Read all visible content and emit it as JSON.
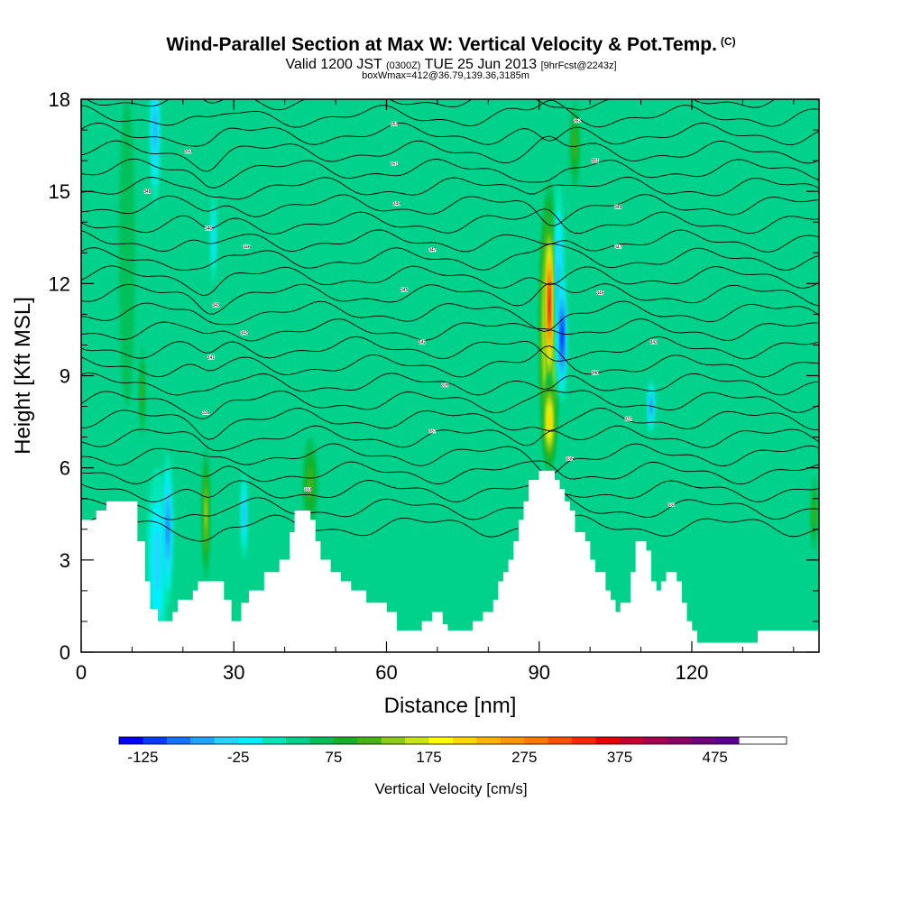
{
  "header": {
    "title": "Wind-Parallel Section at Max W: Vertical Velocity & Pot.Temp.",
    "title_mark": "(C)",
    "valid_prefix": "Valid 1200 JST",
    "valid_utc": "(0300Z)",
    "valid_date": "TUE 25 Jun 2013",
    "forecast": "[9hrFcst@2243z]",
    "box_info": "boxWmax=412@36.79,139.36,3185m"
  },
  "chart_data": {
    "type": "heatmap",
    "xlabel": "Distance [nm]",
    "ylabel": "Height [Kft MSL]",
    "xlim": [
      0,
      145
    ],
    "ylim": [
      0,
      18
    ],
    "x_ticks": [
      0,
      30,
      60,
      90,
      120
    ],
    "y_ticks": [
      0,
      3,
      6,
      9,
      12,
      15,
      18
    ],
    "background_velocity": 40,
    "colorbar": {
      "title": "Vertical Velocity [cm/s]",
      "min": -150,
      "max": 550,
      "step": 25,
      "tick_values": [
        -125,
        -25,
        75,
        175,
        275,
        375,
        475
      ],
      "tick_labels": [
        "-125",
        "-25",
        "75",
        "175",
        "275",
        "375",
        "475"
      ],
      "colors": [
        "#0000ff",
        "#0a3cff",
        "#1473ff",
        "#1ea5ff",
        "#26d4ff",
        "#00f0ff",
        "#00e6b4",
        "#00d28c",
        "#00c05a",
        "#18b028",
        "#46b414",
        "#8ccc14",
        "#c8e614",
        "#ffff00",
        "#ffd800",
        "#ffb400",
        "#ff9600",
        "#ff7800",
        "#ff5000",
        "#ff2800",
        "#e60000",
        "#c80032",
        "#aa0050",
        "#8c0064",
        "#70007f",
        "#5a0090"
      ]
    },
    "terrain": [
      [
        0,
        4.3
      ],
      [
        3,
        4.3
      ],
      [
        3,
        4.6
      ],
      [
        5,
        4.6
      ],
      [
        5,
        4.9
      ],
      [
        11,
        4.9
      ],
      [
        11,
        3.6
      ],
      [
        12.5,
        3.6
      ],
      [
        12.5,
        2.3
      ],
      [
        13.5,
        2.3
      ],
      [
        13.5,
        1.4
      ],
      [
        15,
        1.4
      ],
      [
        15,
        1.0
      ],
      [
        18,
        1.0
      ],
      [
        18,
        1.3
      ],
      [
        19,
        1.3
      ],
      [
        19,
        1.7
      ],
      [
        22,
        1.7
      ],
      [
        22,
        2.0
      ],
      [
        23,
        2.0
      ],
      [
        23,
        2.3
      ],
      [
        28,
        2.3
      ],
      [
        28,
        1.7
      ],
      [
        29.5,
        1.7
      ],
      [
        29.5,
        1.0
      ],
      [
        31.5,
        1.0
      ],
      [
        31.5,
        1.6
      ],
      [
        33,
        1.6
      ],
      [
        33,
        2.0
      ],
      [
        36,
        2.0
      ],
      [
        36,
        2.6
      ],
      [
        39,
        2.6
      ],
      [
        39,
        3.0
      ],
      [
        41,
        3.0
      ],
      [
        41,
        3.9
      ],
      [
        42,
        3.9
      ],
      [
        42,
        4.6
      ],
      [
        45,
        4.6
      ],
      [
        45,
        4.3
      ],
      [
        46,
        4.3
      ],
      [
        46,
        3.6
      ],
      [
        47,
        3.6
      ],
      [
        47,
        3.0
      ],
      [
        49,
        3.0
      ],
      [
        49,
        2.6
      ],
      [
        51,
        2.6
      ],
      [
        51,
        2.3
      ],
      [
        53,
        2.3
      ],
      [
        53,
        2.0
      ],
      [
        56,
        2.0
      ],
      [
        56,
        1.6
      ],
      [
        60,
        1.6
      ],
      [
        60,
        1.3
      ],
      [
        62,
        1.3
      ],
      [
        62,
        0.7
      ],
      [
        67,
        0.7
      ],
      [
        67,
        1.0
      ],
      [
        69,
        1.0
      ],
      [
        69,
        1.3
      ],
      [
        71,
        1.3
      ],
      [
        71,
        0.9
      ],
      [
        72,
        0.9
      ],
      [
        72,
        0.7
      ],
      [
        77,
        0.7
      ],
      [
        77,
        1.0
      ],
      [
        79,
        1.0
      ],
      [
        79,
        1.3
      ],
      [
        81,
        1.3
      ],
      [
        81,
        1.7
      ],
      [
        82,
        1.7
      ],
      [
        82,
        2.3
      ],
      [
        83,
        2.3
      ],
      [
        83,
        2.6
      ],
      [
        84,
        2.6
      ],
      [
        84,
        3.0
      ],
      [
        85,
        3.0
      ],
      [
        85,
        3.6
      ],
      [
        86,
        3.6
      ],
      [
        86,
        4.3
      ],
      [
        87,
        4.3
      ],
      [
        87,
        4.9
      ],
      [
        88,
        4.9
      ],
      [
        88,
        5.6
      ],
      [
        90,
        5.6
      ],
      [
        90,
        5.9
      ],
      [
        93,
        5.9
      ],
      [
        93,
        5.6
      ],
      [
        94,
        5.6
      ],
      [
        94,
        5.3
      ],
      [
        95,
        5.3
      ],
      [
        95,
        4.9
      ],
      [
        96,
        4.9
      ],
      [
        96,
        4.6
      ],
      [
        97,
        4.6
      ],
      [
        97,
        3.9
      ],
      [
        99,
        3.9
      ],
      [
        99,
        3.6
      ],
      [
        100,
        3.6
      ],
      [
        100,
        3.0
      ],
      [
        101,
        3.0
      ],
      [
        101,
        2.6
      ],
      [
        103,
        2.6
      ],
      [
        103,
        2.0
      ],
      [
        104,
        2.0
      ],
      [
        104,
        1.7
      ],
      [
        105,
        1.7
      ],
      [
        105,
        1.3
      ],
      [
        106,
        1.3
      ],
      [
        106,
        1.6
      ],
      [
        108,
        1.6
      ],
      [
        108,
        2.6
      ],
      [
        109,
        2.6
      ],
      [
        109,
        3.6
      ],
      [
        111,
        3.6
      ],
      [
        111,
        3.3
      ],
      [
        112,
        3.3
      ],
      [
        112,
        2.3
      ],
      [
        113,
        2.3
      ],
      [
        113,
        2.0
      ],
      [
        114,
        2.0
      ],
      [
        114,
        2.3
      ],
      [
        115,
        2.3
      ],
      [
        115,
        2.6
      ],
      [
        117,
        2.6
      ],
      [
        117,
        2.3
      ],
      [
        118,
        2.3
      ],
      [
        118,
        1.6
      ],
      [
        119,
        1.6
      ],
      [
        119,
        1.0
      ],
      [
        120,
        1.0
      ],
      [
        120,
        0.7
      ],
      [
        121,
        0.7
      ],
      [
        121,
        0.3
      ],
      [
        133,
        0.3
      ],
      [
        133,
        0.7
      ],
      [
        145,
        0.7
      ]
    ],
    "anomalies": [
      {
        "x": 92,
        "y": 11.3,
        "rx": 0.65,
        "ry": 3.0,
        "value": 412
      },
      {
        "x": 92,
        "y": 10.5,
        "rx": 2.0,
        "ry": 4.8,
        "value": 260
      },
      {
        "x": 92,
        "y": 7.5,
        "rx": 1.2,
        "ry": 1.6,
        "value": 240
      },
      {
        "x": 94.5,
        "y": 10.3,
        "rx": 0.9,
        "ry": 2.2,
        "value": -130
      },
      {
        "x": 93.8,
        "y": 11.8,
        "rx": 1.1,
        "ry": 3.5,
        "value": -60
      },
      {
        "x": 15,
        "y": 3.0,
        "rx": 2.2,
        "ry": 3.0,
        "value": -40
      },
      {
        "x": 14.5,
        "y": 17.0,
        "rx": 1.0,
        "ry": 2.5,
        "value": -60
      },
      {
        "x": 24.5,
        "y": 4.5,
        "rx": 0.7,
        "ry": 2.2,
        "value": 170
      },
      {
        "x": 12,
        "y": 8.5,
        "rx": 0.6,
        "ry": 1.5,
        "value": 120
      },
      {
        "x": 17,
        "y": 4.0,
        "rx": 1.0,
        "ry": 2.5,
        "value": -80
      },
      {
        "x": 32,
        "y": 4.5,
        "rx": 0.6,
        "ry": 1.5,
        "value": -70
      },
      {
        "x": 45,
        "y": 5.5,
        "rx": 1.5,
        "ry": 1.5,
        "value": 120
      },
      {
        "x": 112,
        "y": 8.0,
        "rx": 0.7,
        "ry": 0.9,
        "value": -80
      },
      {
        "x": 26,
        "y": 13.5,
        "rx": 0.6,
        "ry": 1.5,
        "value": -40
      },
      {
        "x": 97,
        "y": 16.5,
        "rx": 1.0,
        "ry": 1.4,
        "value": 110
      },
      {
        "x": 144,
        "y": 4.5,
        "rx": 0.7,
        "ry": 1.2,
        "value": 120
      },
      {
        "x": 9,
        "y": 13.0,
        "rx": 1.6,
        "ry": 5.0,
        "value": 60
      }
    ],
    "theta_contours": {
      "count": 27,
      "base_y": 4.1,
      "spacing": 0.58,
      "labels": [
        {
          "x": 24.5,
          "y": 7.8,
          "text": "338"
        },
        {
          "x": 25.5,
          "y": 9.6,
          "text": "341"
        },
        {
          "x": 26.5,
          "y": 11.3,
          "text": "343"
        },
        {
          "x": 25.0,
          "y": 13.8,
          "text": "346"
        },
        {
          "x": 21.0,
          "y": 16.3,
          "text": "350"
        },
        {
          "x": 32.0,
          "y": 10.4,
          "text": "342"
        },
        {
          "x": 32.5,
          "y": 13.2,
          "text": "346"
        },
        {
          "x": 13.0,
          "y": 15.0,
          "text": "348"
        },
        {
          "x": 44.5,
          "y": 5.3,
          "text": "333"
        },
        {
          "x": 61.5,
          "y": 17.2,
          "text": "353"
        },
        {
          "x": 61.5,
          "y": 15.9,
          "text": "351"
        },
        {
          "x": 62.0,
          "y": 14.6,
          "text": "349"
        },
        {
          "x": 63.5,
          "y": 11.8,
          "text": "345"
        },
        {
          "x": 67.0,
          "y": 10.1,
          "text": "342"
        },
        {
          "x": 69.0,
          "y": 13.1,
          "text": "347"
        },
        {
          "x": 69.0,
          "y": 7.2,
          "text": "337"
        },
        {
          "x": 71.5,
          "y": 8.7,
          "text": "339"
        },
        {
          "x": 96.0,
          "y": 6.3,
          "text": "335"
        },
        {
          "x": 97.5,
          "y": 17.3,
          "text": "352"
        },
        {
          "x": 101.0,
          "y": 9.1,
          "text": "340"
        },
        {
          "x": 101.0,
          "y": 16.0,
          "text": "351"
        },
        {
          "x": 102.0,
          "y": 11.7,
          "text": "345"
        },
        {
          "x": 105.5,
          "y": 14.5,
          "text": "349"
        },
        {
          "x": 105.5,
          "y": 13.2,
          "text": "347"
        },
        {
          "x": 107.5,
          "y": 7.6,
          "text": "337"
        },
        {
          "x": 112.5,
          "y": 10.1,
          "text": "342"
        },
        {
          "x": 116.0,
          "y": 4.8,
          "text": "333"
        }
      ]
    }
  }
}
